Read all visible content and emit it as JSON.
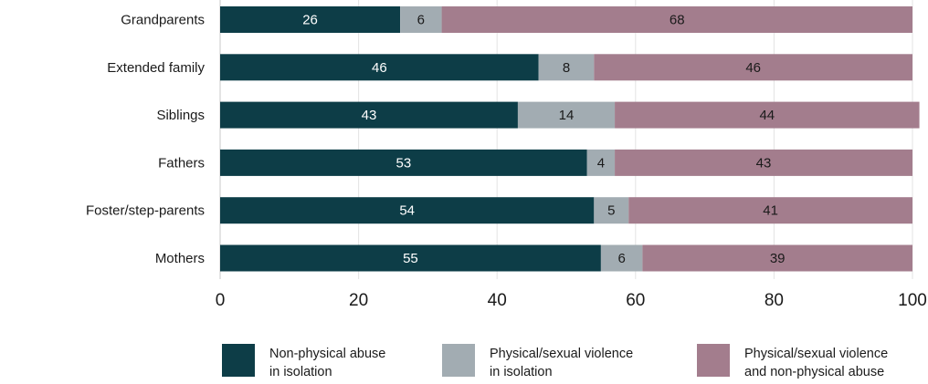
{
  "chart_data": {
    "type": "bar",
    "orientation": "horizontal",
    "stacked": true,
    "categories": [
      "Grandparents",
      "Extended family",
      "Siblings",
      "Fathers",
      "Foster/step-parents",
      "Mothers"
    ],
    "series": [
      {
        "name": "Non-physical abuse\nin isolation",
        "color": "#0d3d47",
        "label_color": "#ffffff",
        "values": [
          26,
          46,
          43,
          53,
          54,
          55
        ]
      },
      {
        "name": "Physical/sexual violence\nin isolation",
        "color": "#a2acb2",
        "label_color": "#1a1a1a",
        "values": [
          6,
          8,
          14,
          4,
          5,
          6
        ]
      },
      {
        "name": "Physical/sexual violence\nand non-physical abuse",
        "color": "#a37d8d",
        "label_color": "#1a1a1a",
        "values": [
          68,
          46,
          44,
          43,
          41,
          39
        ]
      }
    ],
    "xlim": [
      0,
      100
    ],
    "xticks": [
      0,
      20,
      40,
      60,
      80,
      100
    ],
    "grid": "vertical",
    "legend": "bottom",
    "title": "",
    "xlabel": "",
    "ylabel": ""
  }
}
